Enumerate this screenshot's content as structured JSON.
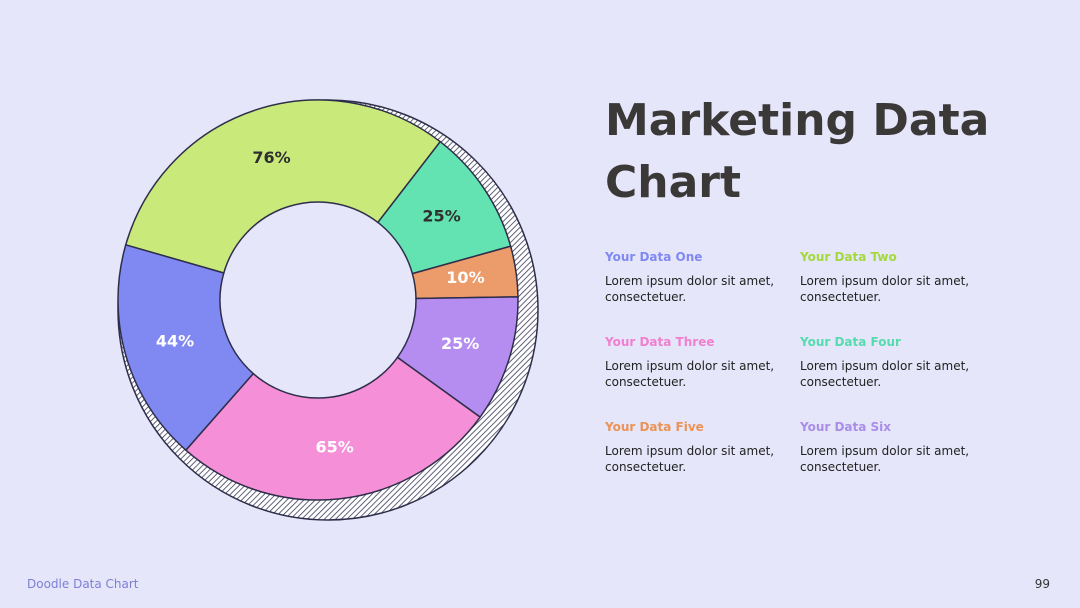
{
  "chart_data": {
    "type": "donut",
    "values": [
      76,
      25,
      10,
      25,
      65,
      44
    ],
    "value_labels": [
      "76%",
      "25%",
      "10%",
      "25%",
      "65%",
      "44%"
    ],
    "colors": [
      "#c9ea7b",
      "#63e3b2",
      "#ec9b6a",
      "#b58df0",
      "#f48fd8",
      "#8088f2"
    ],
    "label_colors": [
      "#2f2f2f",
      "#2f2f2f",
      "#ffffff",
      "#ffffff",
      "#ffffff",
      "#ffffff"
    ]
  },
  "title": "Marketing Data Chart",
  "legend": [
    {
      "name": "Your Data One",
      "color": "#8088f2",
      "text": "Lorem ipsum dolor sit amet, consectetuer."
    },
    {
      "name": "Your Data Two",
      "color": "#a3d93a",
      "text": "Lorem ipsum dolor sit amet, consectetuer."
    },
    {
      "name": "Your Data Three",
      "color": "#f07fcf",
      "text": "Lorem ipsum dolor sit amet, consectetuer."
    },
    {
      "name": "Your Data Four",
      "color": "#55dcae",
      "text": "Lorem ipsum dolor sit amet, consectetuer."
    },
    {
      "name": "Your Data Five",
      "color": "#ea9356",
      "text": "Lorem ipsum dolor sit amet, consectetuer."
    },
    {
      "name": "Your Data Six",
      "color": "#a98de8",
      "text": "Lorem ipsum dolor sit amet, consectetuer."
    }
  ],
  "footer": {
    "left": "Doodle Data Chart",
    "page": "99"
  }
}
